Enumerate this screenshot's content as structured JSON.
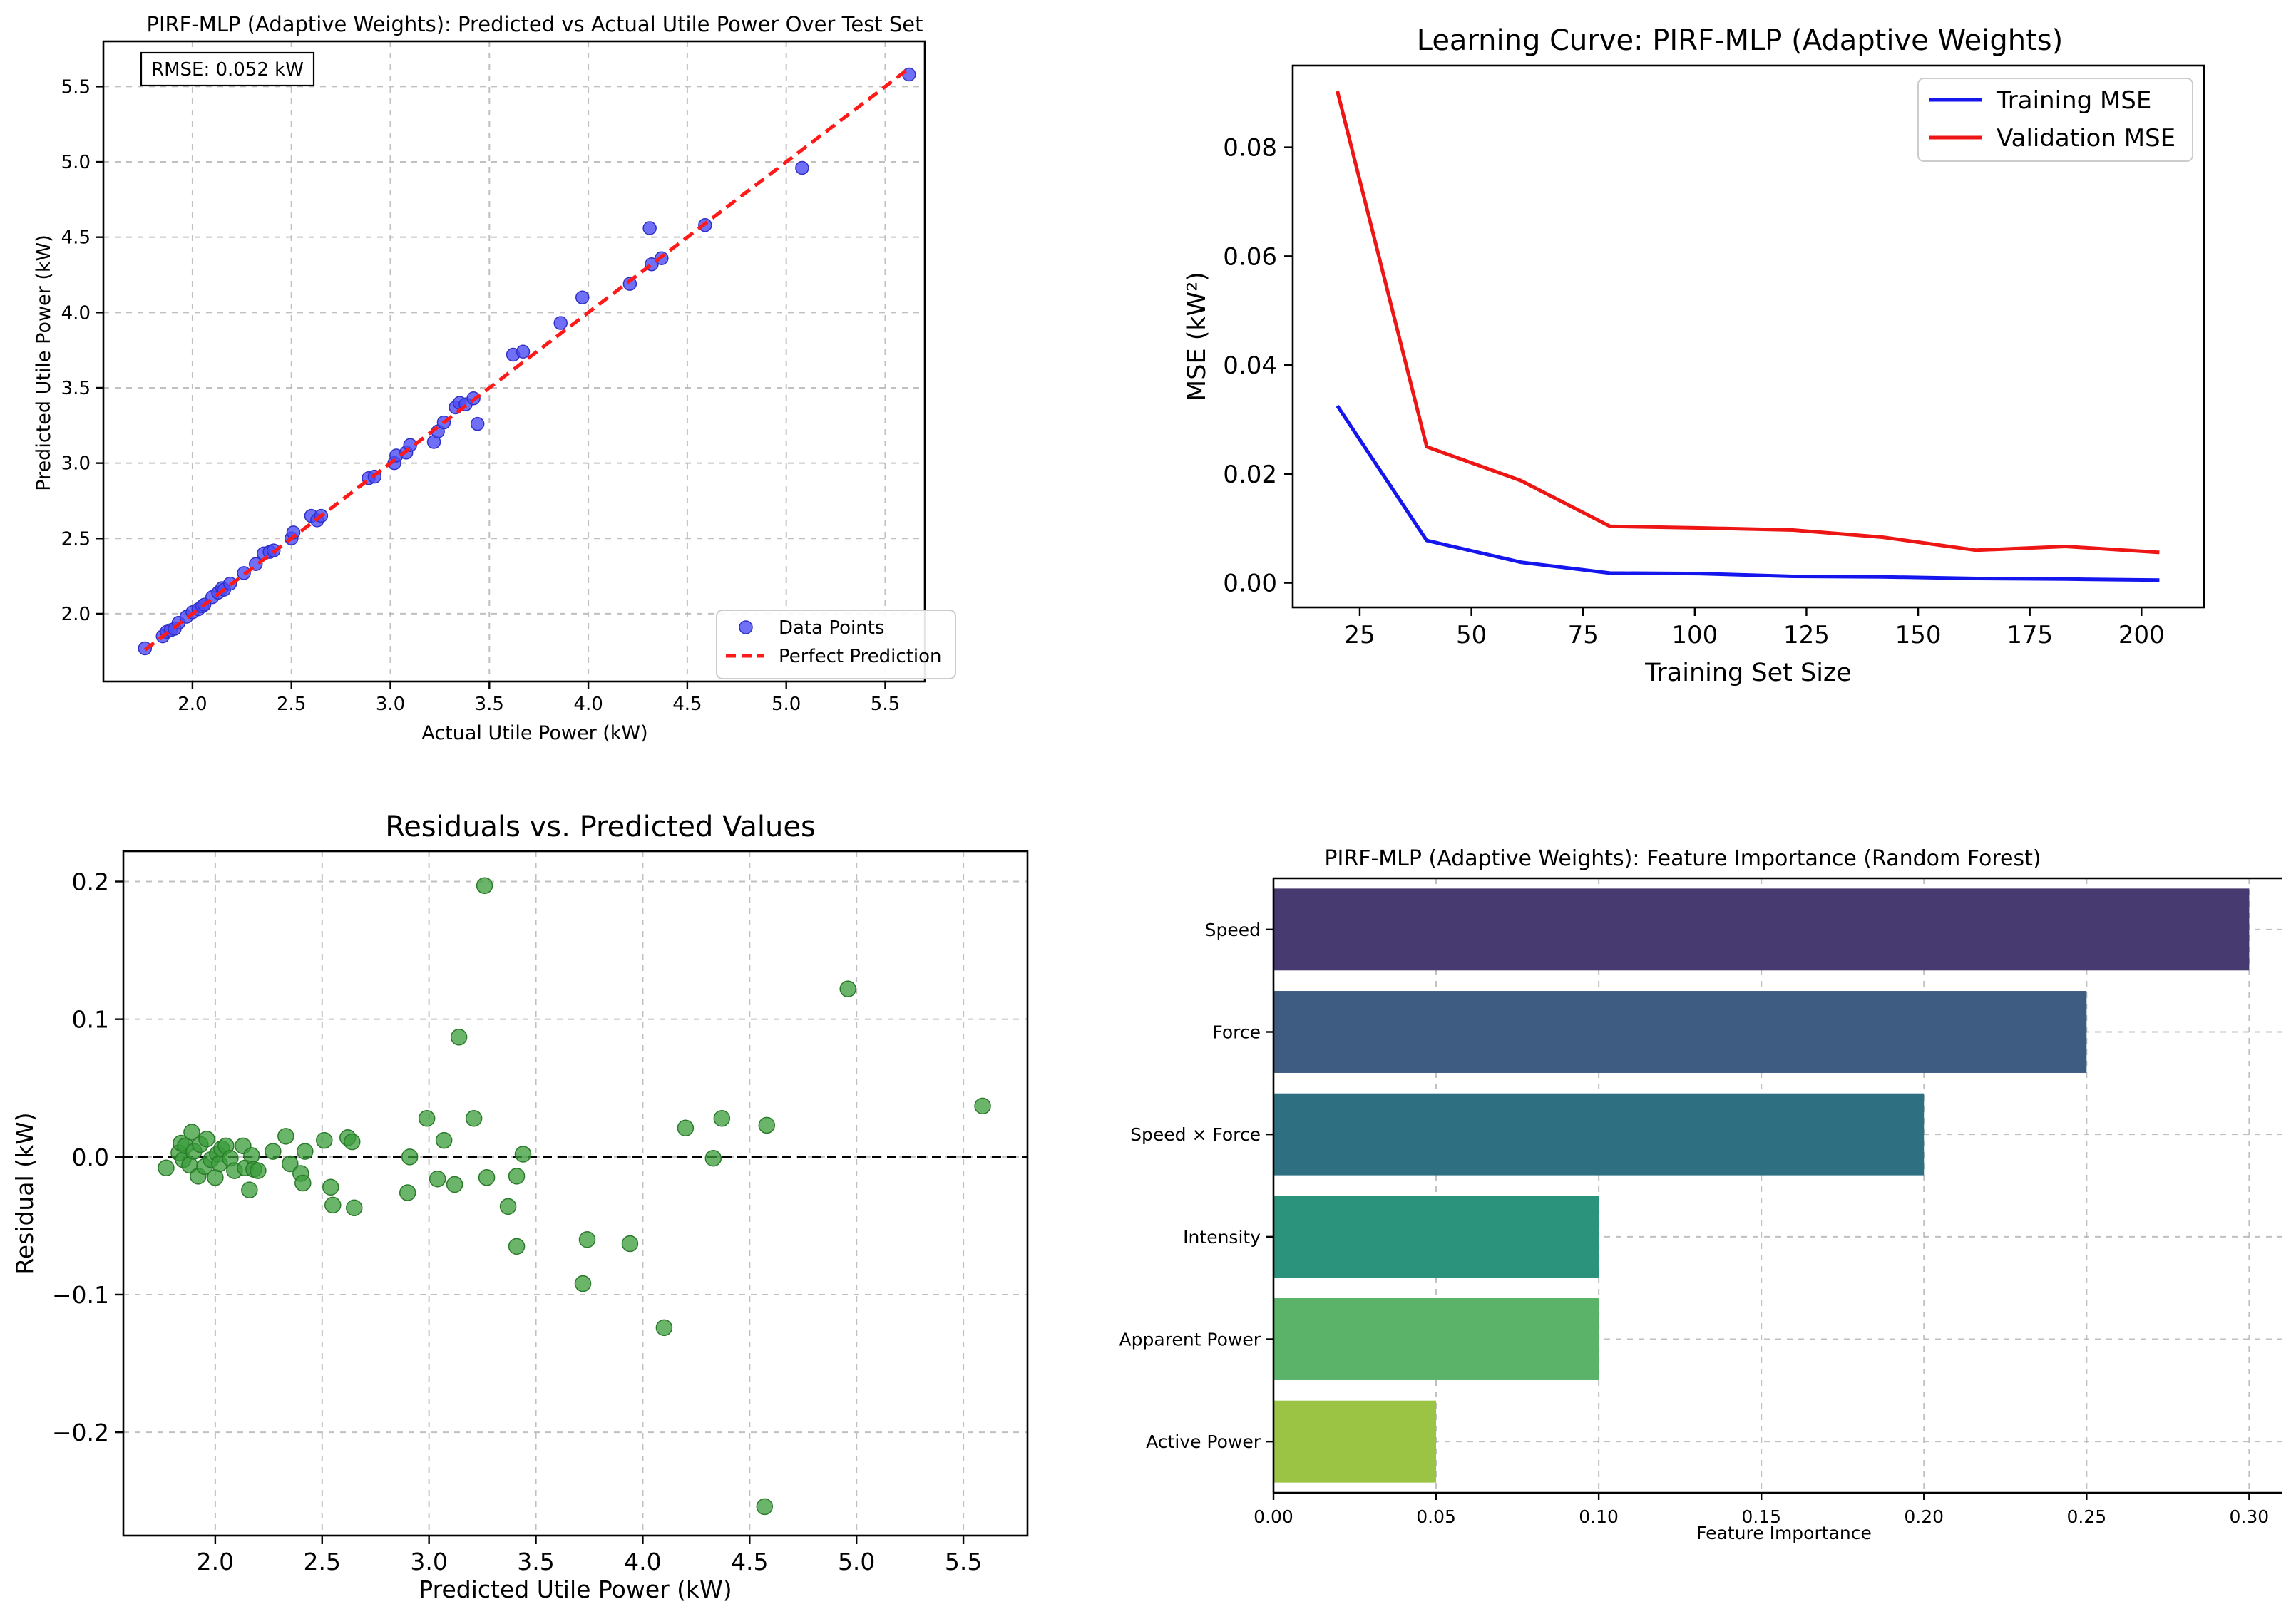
{
  "chart_data": [
    {
      "type": "scatter",
      "title": "PIRF-MLP (Adaptive Weights): Predicted vs Actual Utile Power Over Test Set",
      "xlabel": "Actual Utile Power (kW)",
      "ylabel": "Predicted Utile Power (kW)",
      "xlim": [
        1.55,
        5.7
      ],
      "ylim": [
        1.55,
        5.8
      ],
      "xticks": [
        "2.0",
        "2.5",
        "3.0",
        "3.5",
        "4.0",
        "4.5",
        "5.0",
        "5.5"
      ],
      "yticks": [
        "2.0",
        "2.5",
        "3.0",
        "3.5",
        "4.0",
        "4.5",
        "5.0",
        "5.5"
      ],
      "grid": true,
      "annotation": "RMSE: 0.052 kW",
      "legend": {
        "placement": "lower-right",
        "entries": [
          "Data Points",
          "Perfect Prediction"
        ]
      },
      "colors": {
        "points": "#4c4cf5",
        "line": "#ff1a1a"
      },
      "series": [
        {
          "name": "Data Points",
          "kind": "points",
          "x": [
            1.76,
            1.85,
            1.87,
            1.89,
            1.91,
            1.93,
            1.97,
            2.0,
            2.03,
            2.05,
            2.06,
            2.1,
            2.13,
            2.15,
            2.16,
            2.19,
            2.26,
            2.32,
            2.36,
            2.39,
            2.41,
            2.5,
            2.51,
            2.6,
            2.63,
            2.65,
            2.89,
            2.92,
            3.02,
            3.03,
            3.08,
            3.1,
            3.22,
            3.24,
            3.27,
            3.33,
            3.35,
            3.38,
            3.42,
            3.44,
            3.62,
            3.67,
            3.86,
            3.97,
            4.21,
            4.31,
            4.32,
            4.37,
            4.59,
            5.08,
            5.62
          ],
          "y": [
            1.77,
            1.85,
            1.88,
            1.89,
            1.9,
            1.94,
            1.98,
            2.01,
            2.03,
            2.05,
            2.06,
            2.11,
            2.14,
            2.17,
            2.16,
            2.2,
            2.27,
            2.33,
            2.4,
            2.41,
            2.42,
            2.5,
            2.54,
            2.65,
            2.62,
            2.65,
            2.9,
            2.91,
            3.0,
            3.05,
            3.07,
            3.12,
            3.14,
            3.21,
            3.27,
            3.37,
            3.4,
            3.39,
            3.43,
            3.26,
            3.72,
            3.74,
            3.93,
            4.1,
            4.19,
            4.56,
            4.32,
            4.36,
            4.58,
            4.96,
            5.58
          ]
        },
        {
          "name": "Perfect Prediction",
          "kind": "line",
          "x": [
            1.76,
            5.62
          ],
          "y": [
            1.76,
            5.62
          ]
        }
      ]
    },
    {
      "type": "line",
      "title": "Learning Curve: PIRF-MLP (Adaptive Weights)",
      "xlabel": "Training Set Size",
      "ylabel": "MSE (kW²)",
      "xlim": [
        10,
        214
      ],
      "ylim": [
        -0.0045,
        0.095
      ],
      "xticks": [
        "25",
        "50",
        "75",
        "100",
        "125",
        "150",
        "175",
        "200"
      ],
      "yticks": [
        "0.00",
        "0.02",
        "0.04",
        "0.06",
        "0.08"
      ],
      "grid": false,
      "legend": {
        "placement": "top-right",
        "entries": [
          "Training MSE",
          "Validation MSE"
        ]
      },
      "series": [
        {
          "name": "Training MSE",
          "color": "#1515ee",
          "x": [
            20,
            40,
            61,
            81,
            101,
            122,
            142,
            163,
            183,
            204
          ],
          "y": [
            0.0325,
            0.0078,
            0.0038,
            0.0018,
            0.0017,
            0.0012,
            0.0011,
            0.0008,
            0.0007,
            0.0005
          ]
        },
        {
          "name": "Validation MSE",
          "color": "#ee1515",
          "x": [
            20,
            40,
            61,
            81,
            101,
            122,
            142,
            163,
            183,
            204
          ],
          "y": [
            0.0903,
            0.025,
            0.0188,
            0.0104,
            0.0101,
            0.0097,
            0.0084,
            0.006,
            0.0067,
            0.0056
          ]
        }
      ]
    },
    {
      "type": "scatter",
      "title": "Residuals vs. Predicted Values",
      "xlabel": "Predicted Utile Power (kW)",
      "ylabel": "Residual (kW)",
      "xlim": [
        1.57,
        5.8
      ],
      "ylim": [
        -0.275,
        0.222
      ],
      "xticks": [
        "2.0",
        "2.5",
        "3.0",
        "3.5",
        "4.0",
        "4.5",
        "5.0",
        "5.5"
      ],
      "yticks": [
        "−0.2",
        "−0.1",
        "0.0",
        "0.1",
        "0.2"
      ],
      "grid": true,
      "reference_line": 0.0,
      "colors": {
        "points": "#3a9c3a",
        "reference": "#000000"
      },
      "series": [
        {
          "name": "Residuals",
          "x": [
            1.77,
            1.83,
            1.84,
            1.85,
            1.86,
            1.88,
            1.89,
            1.9,
            1.92,
            1.93,
            1.95,
            1.96,
            1.98,
            2.0,
            2.01,
            2.02,
            2.03,
            2.05,
            2.07,
            2.09,
            2.13,
            2.14,
            2.16,
            2.17,
            2.18,
            2.2,
            2.27,
            2.33,
            2.35,
            2.4,
            2.41,
            2.42,
            2.51,
            2.54,
            2.55,
            2.62,
            2.64,
            2.65,
            2.9,
            2.91,
            2.99,
            3.04,
            3.07,
            3.12,
            3.14,
            3.21,
            3.26,
            3.27,
            3.37,
            3.41,
            3.41,
            3.44,
            3.72,
            3.74,
            3.94,
            4.1,
            4.2,
            4.33,
            4.37,
            4.58,
            4.96,
            5.59,
            4.57
          ],
          "y": [
            -0.008,
            0.003,
            0.01,
            -0.002,
            0.008,
            -0.006,
            0.018,
            0.004,
            -0.014,
            0.009,
            -0.007,
            0.013,
            -0.002,
            -0.015,
            0.002,
            -0.005,
            0.006,
            0.008,
            -0.001,
            -0.01,
            0.008,
            -0.008,
            -0.024,
            0.001,
            -0.009,
            -0.01,
            0.004,
            0.015,
            -0.005,
            -0.012,
            -0.019,
            0.004,
            0.012,
            -0.022,
            -0.035,
            0.014,
            0.011,
            -0.037,
            -0.026,
            0.0,
            0.028,
            -0.016,
            0.012,
            -0.02,
            0.087,
            0.028,
            0.197,
            -0.015,
            -0.036,
            -0.065,
            -0.014,
            0.002,
            -0.092,
            -0.06,
            -0.063,
            -0.124,
            0.021,
            -0.001,
            0.028,
            0.023,
            0.122,
            0.037,
            -0.254
          ]
        }
      ]
    },
    {
      "type": "bar",
      "orientation": "horizontal",
      "title": "PIRF-MLP (Adaptive Weights): Feature Importance (Random Forest)",
      "xlabel": "Feature Importance",
      "ylabel": "",
      "xlim": [
        0,
        0.31
      ],
      "xticks": [
        "0.00",
        "0.05",
        "0.10",
        "0.15",
        "0.20",
        "0.25",
        "0.30"
      ],
      "grid": true,
      "categories": [
        "Speed",
        "Force",
        "Speed × Force",
        "Intensity",
        "Apparent Power",
        "Active Power"
      ],
      "values": [
        0.3,
        0.25,
        0.2,
        0.1,
        0.1,
        0.05
      ],
      "colors": [
        "#473a71",
        "#3e5b82",
        "#2e7081",
        "#2b927c",
        "#5bb369",
        "#9cc444"
      ]
    }
  ]
}
